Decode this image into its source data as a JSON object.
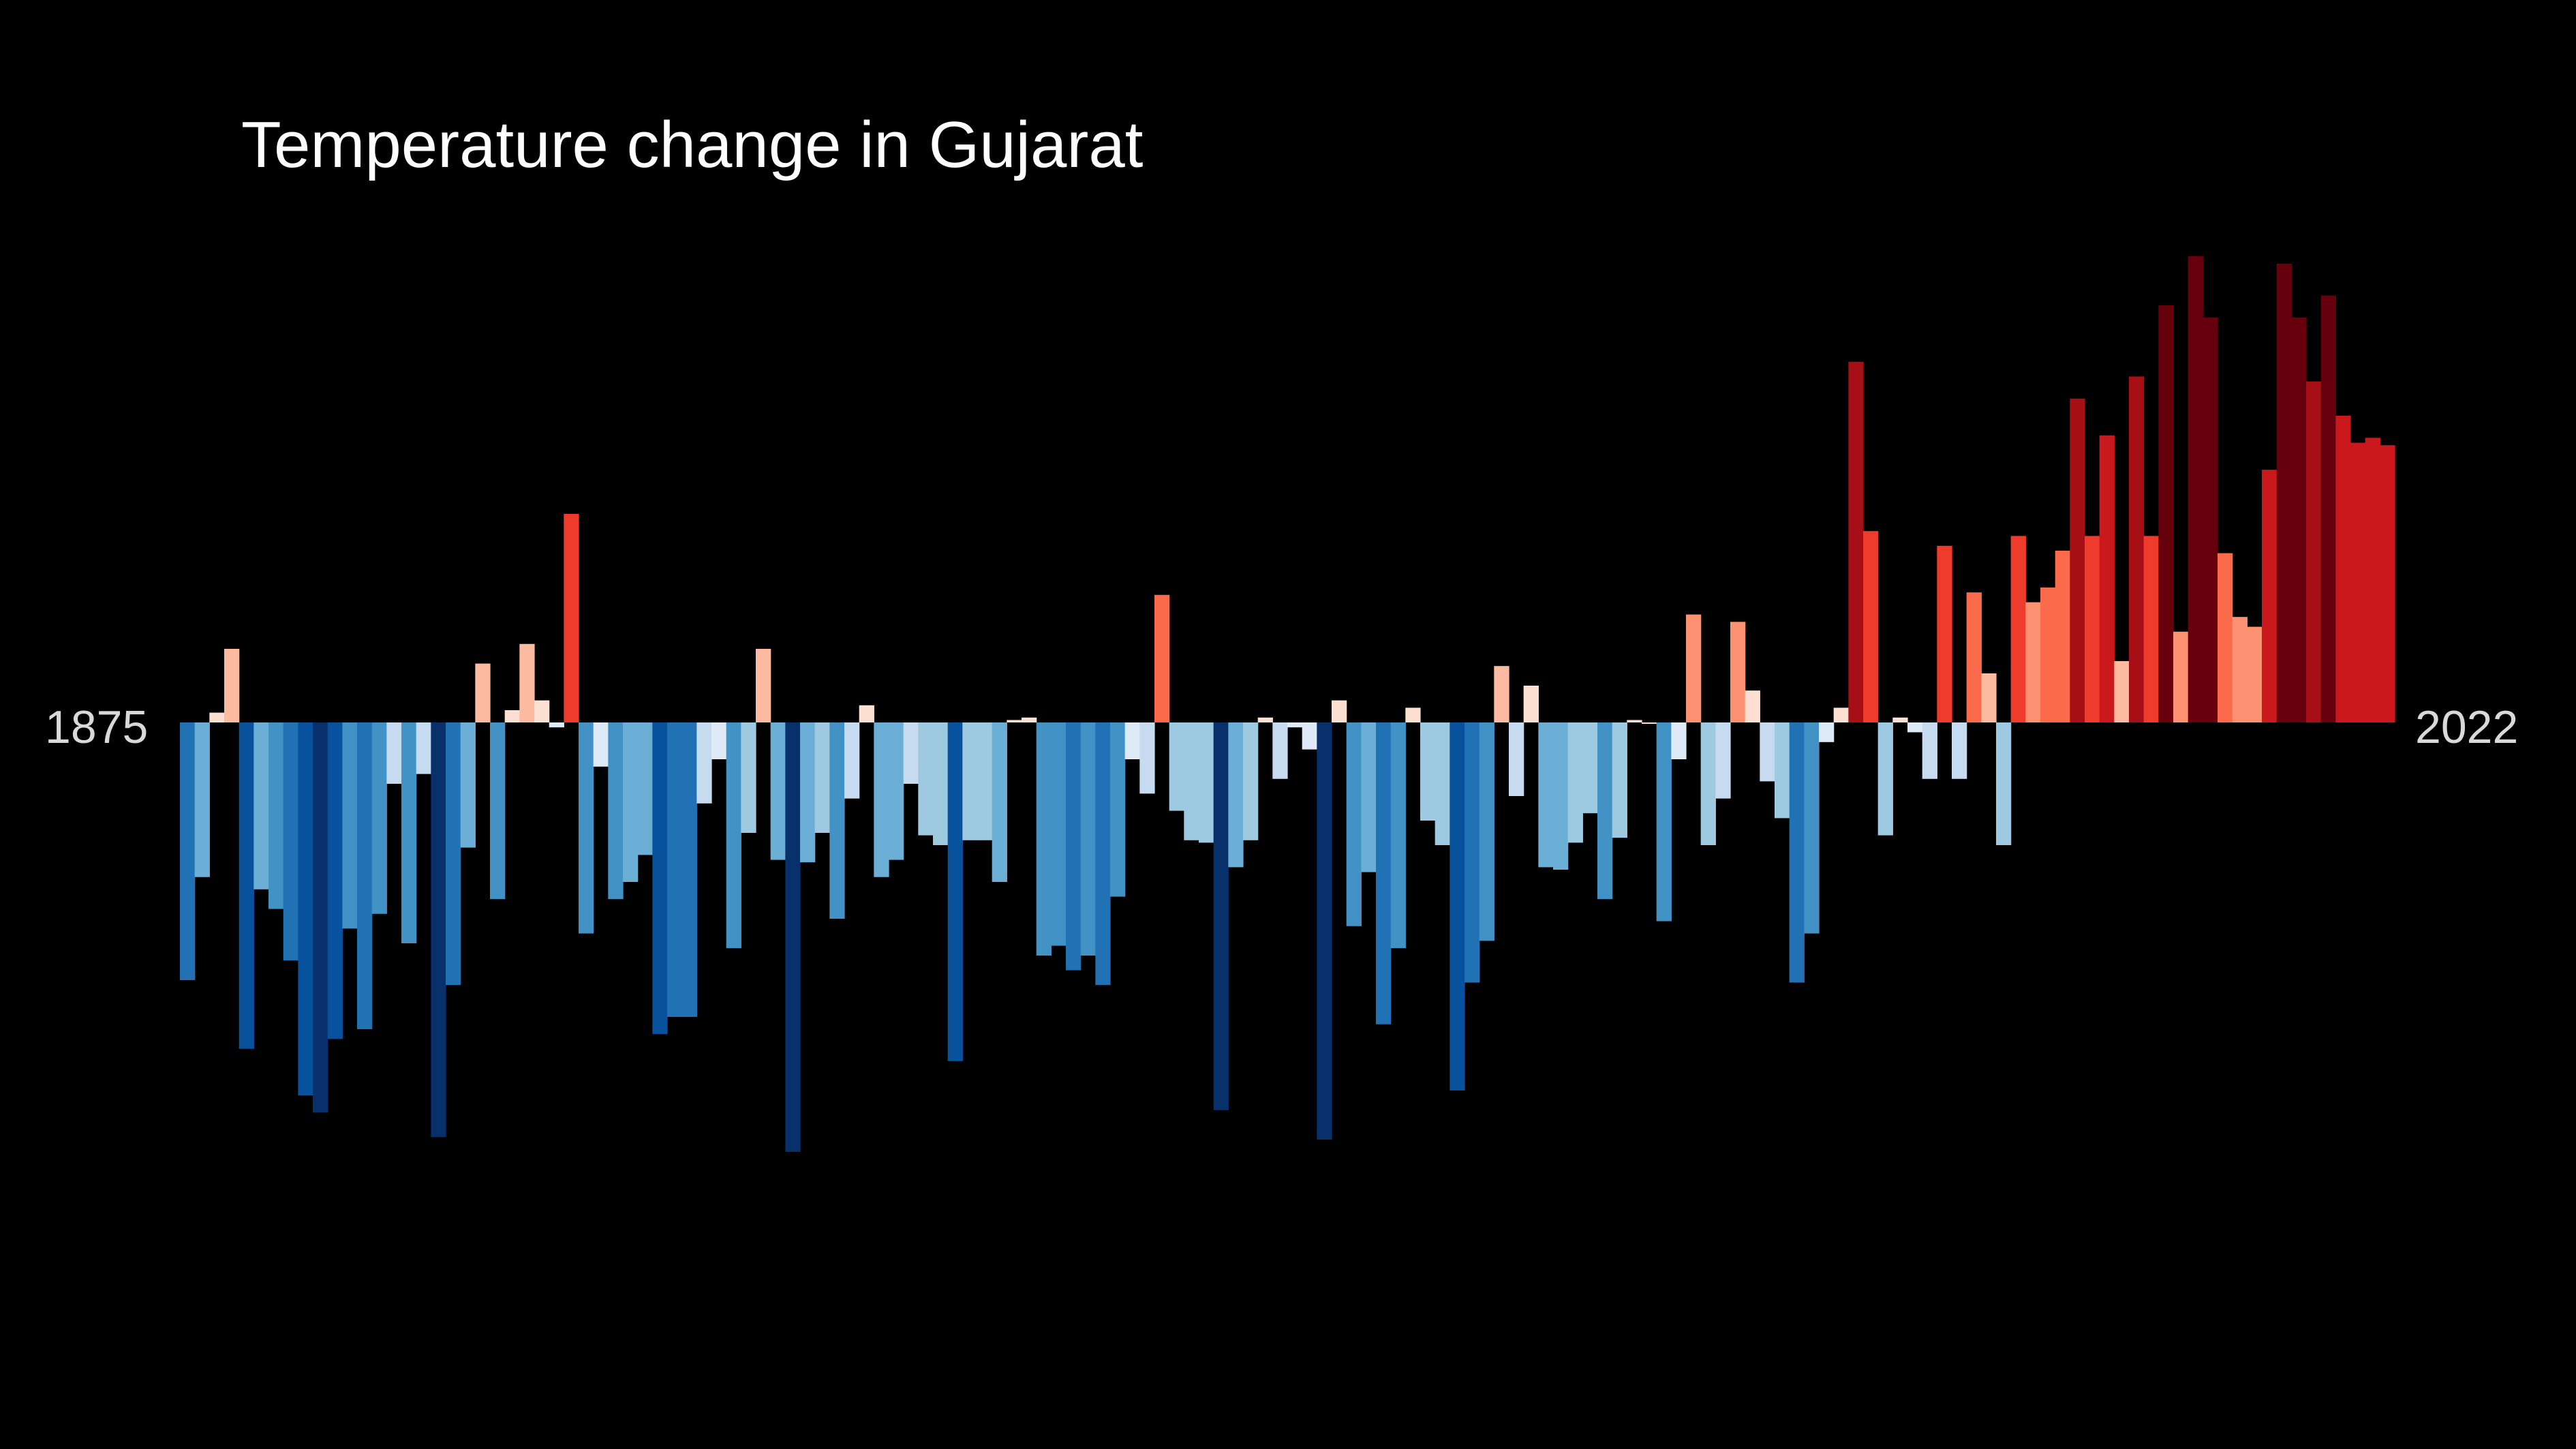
{
  "chart_data": {
    "type": "bar",
    "title": "Temperature change in Gujarat",
    "start_label": "1875",
    "end_label": "2022",
    "x_start": 1875,
    "x_end": 2022,
    "ylim": [
      -2.15,
      2.35
    ],
    "baseline": 0,
    "color_scale": {
      "negative": [
        "#08306b",
        "#08519c",
        "#2171b5",
        "#4292c6",
        "#6baed6",
        "#9ecae1",
        "#c6dbef",
        "#deebf7"
      ],
      "positive": [
        "#fee0d2",
        "#fcbba1",
        "#fc9272",
        "#fb6a4a",
        "#ef3b2c",
        "#cb181d",
        "#a50f15",
        "#67000d"
      ]
    },
    "values": [
      -1.05,
      -0.63,
      0.04,
      0.3,
      -1.33,
      -0.68,
      -0.76,
      -0.97,
      -1.52,
      -1.59,
      -1.29,
      -0.84,
      -1.25,
      -0.78,
      -0.25,
      -0.9,
      -0.21,
      -1.69,
      -1.07,
      -0.51,
      0.24,
      -0.72,
      0.05,
      0.32,
      0.09,
      -0.02,
      0.85,
      -0.86,
      -0.18,
      -0.72,
      -0.65,
      -0.54,
      -1.27,
      -1.2,
      -1.2,
      -0.33,
      -0.15,
      -0.92,
      -0.45,
      0.3,
      -0.56,
      -1.75,
      -0.57,
      -0.45,
      -0.8,
      -0.31,
      0.07,
      -0.63,
      -0.56,
      -0.25,
      -0.46,
      -0.5,
      -1.38,
      -0.48,
      -0.48,
      -0.65,
      0.01,
      0.02,
      -0.95,
      -0.91,
      -1.01,
      -0.95,
      -1.07,
      -0.71,
      -0.15,
      -0.29,
      0.52,
      -0.36,
      -0.48,
      -0.49,
      -1.58,
      -0.59,
      -0.48,
      0.02,
      -0.23,
      -0.02,
      -0.11,
      -1.7,
      0.09,
      -0.83,
      -0.61,
      -1.23,
      -0.92,
      0.06,
      -0.4,
      -0.5,
      -1.5,
      -1.06,
      -0.89,
      0.23,
      -0.3,
      0.15,
      -0.59,
      -0.6,
      -0.49,
      -0.37,
      -0.72,
      -0.47,
      0.01,
      0.0,
      -0.81,
      -0.15,
      0.44,
      -0.5,
      -0.31,
      0.41,
      0.13,
      -0.24,
      -0.39,
      -1.06,
      -0.86,
      -0.08,
      0.06,
      1.47,
      0.78,
      -0.46,
      0.02,
      -0.04,
      -0.23,
      0.72,
      -0.23,
      0.53,
      0.2,
      -0.5,
      0.76,
      0.49,
      0.55,
      0.7,
      1.32,
      0.76,
      1.17,
      0.25,
      1.41,
      0.76,
      1.7,
      0.37,
      1.9,
      1.65,
      0.69,
      0.43,
      0.39,
      1.03,
      1.87,
      1.65,
      1.39,
      1.74,
      1.25,
      1.14,
      1.16,
      1.13
    ]
  }
}
